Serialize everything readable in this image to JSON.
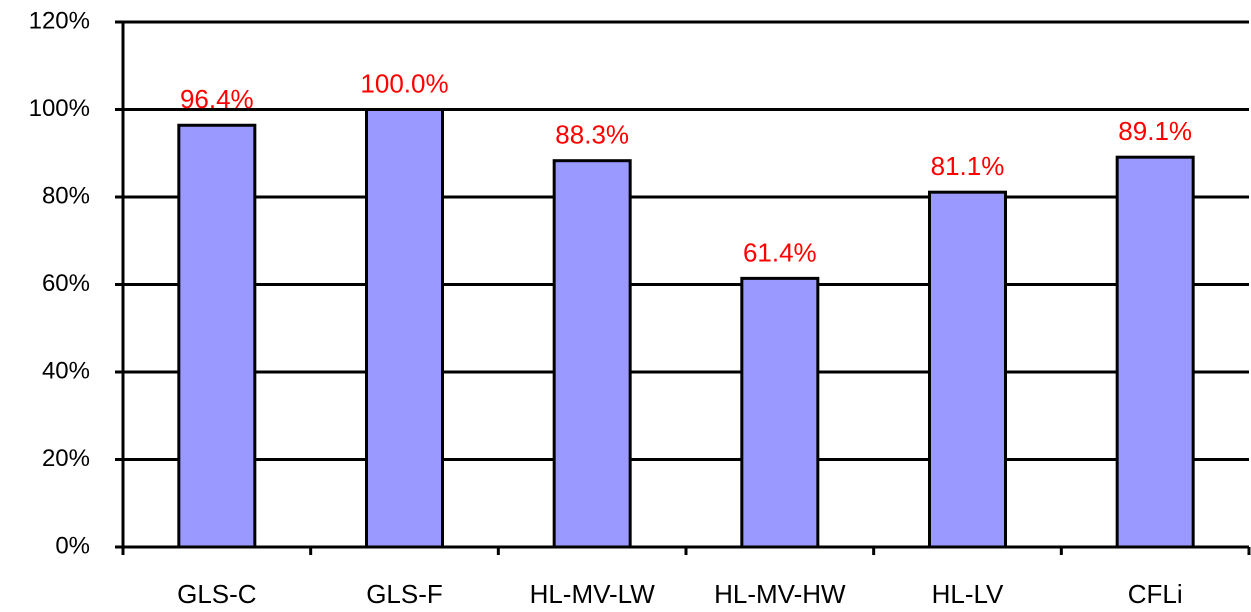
{
  "chart_data": {
    "type": "bar",
    "categories": [
      "GLS-C",
      "GLS-F",
      "HL-MV-LW",
      "HL-MV-HW",
      "HL-LV",
      "CFLi"
    ],
    "values": [
      96.4,
      100.0,
      88.3,
      61.4,
      81.1,
      89.1
    ],
    "value_labels": [
      "96.4%",
      "100.0%",
      "88.3%",
      "61.4%",
      "81.1%",
      "89.1%"
    ],
    "color": "#9999ff",
    "value_label_color": "#ff0000",
    "ylim": [
      0,
      120
    ],
    "yticks": [
      {
        "value": 0,
        "label": "0%"
      },
      {
        "value": 20,
        "label": "20%"
      },
      {
        "value": 40,
        "label": "40%"
      },
      {
        "value": 60,
        "label": "60%"
      },
      {
        "value": 80,
        "label": "80%"
      },
      {
        "value": 100,
        "label": "100%"
      },
      {
        "value": 120,
        "label": "120%"
      }
    ],
    "grid": true
  }
}
